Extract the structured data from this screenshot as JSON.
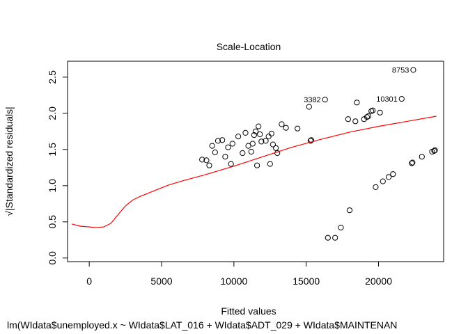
{
  "chart_data": {
    "type": "scatter",
    "title": "Scale-Location",
    "xlabel": "Fitted values",
    "ylabel": "√|Standardized residuals|",
    "subtitle": "lm(WIdata$unemployed.x ~ WIdata$LAT_016 + WIdata$ADT_029 + WIdata$MAINTENAN",
    "xlim": [
      -1500,
      24500
    ],
    "ylim": [
      -0.05,
      2.72
    ],
    "x_ticks": [
      0,
      5000,
      10000,
      15000,
      20000
    ],
    "y_ticks": [
      0.0,
      0.5,
      1.0,
      1.5,
      2.0,
      2.5
    ],
    "x_tick_labels": [
      "0",
      "5000",
      "10000",
      "15000",
      "20000"
    ],
    "y_tick_labels": [
      "0.0",
      "0.5",
      "1.0",
      "1.5",
      "2.0",
      "2.5"
    ],
    "grid": false,
    "legend": "none",
    "marker": "open-circle",
    "point_color": "#000000",
    "smooth_color": "#ff0000",
    "labeled_points": [
      {
        "label": "8753",
        "x": 22400,
        "y": 2.6
      },
      {
        "label": "3382",
        "x": 16300,
        "y": 2.19
      },
      {
        "label": "10301",
        "x": 21600,
        "y": 2.2
      }
    ],
    "points": [
      [
        16500,
        0.28
      ],
      [
        17000,
        0.28
      ],
      [
        17400,
        0.42
      ],
      [
        18000,
        0.66
      ],
      [
        19800,
        0.98
      ],
      [
        20300,
        1.06
      ],
      [
        20700,
        1.12
      ],
      [
        21000,
        1.16
      ],
      [
        22300,
        1.31
      ],
      [
        22350,
        1.32
      ],
      [
        23000,
        1.4
      ],
      [
        23700,
        1.47
      ],
      [
        23850,
        1.48
      ],
      [
        23900,
        1.49
      ],
      [
        15200,
        2.09
      ],
      [
        15300,
        1.62
      ],
      [
        15350,
        1.63
      ],
      [
        17900,
        1.92
      ],
      [
        18400,
        1.89
      ],
      [
        18500,
        2.15
      ],
      [
        19000,
        1.92
      ],
      [
        19200,
        1.95
      ],
      [
        19300,
        1.96
      ],
      [
        19500,
        2.03
      ],
      [
        19600,
        2.04
      ],
      [
        20100,
        2.01
      ],
      [
        14400,
        1.79
      ],
      [
        13300,
        1.85
      ],
      [
        13600,
        1.8
      ],
      [
        12700,
        1.57
      ],
      [
        12400,
        1.68
      ],
      [
        12200,
        1.62
      ],
      [
        11900,
        1.61
      ],
      [
        11700,
        1.82
      ],
      [
        11500,
        1.75
      ],
      [
        11400,
        1.7
      ],
      [
        11300,
        1.58
      ],
      [
        11000,
        1.55
      ],
      [
        10800,
        1.73
      ],
      [
        10300,
        1.68
      ],
      [
        9900,
        1.58
      ],
      [
        9600,
        1.53
      ],
      [
        9200,
        1.63
      ],
      [
        8900,
        1.62
      ],
      [
        12600,
        1.72
      ],
      [
        11800,
        1.71
      ],
      [
        13000,
        1.45
      ],
      [
        11200,
        1.47
      ],
      [
        12500,
        1.3
      ],
      [
        8500,
        1.55
      ],
      [
        8100,
        1.35
      ],
      [
        7800,
        1.36
      ],
      [
        8300,
        1.28
      ],
      [
        9400,
        1.4
      ],
      [
        12900,
        1.52
      ],
      [
        11600,
        1.28
      ],
      [
        8700,
        1.46
      ],
      [
        9800,
        1.3
      ],
      [
        10600,
        1.45
      ]
    ],
    "smooth": [
      [
        -1200,
        0.47
      ],
      [
        -600,
        0.44
      ],
      [
        0,
        0.43
      ],
      [
        500,
        0.42
      ],
      [
        1000,
        0.43
      ],
      [
        1500,
        0.48
      ],
      [
        2000,
        0.6
      ],
      [
        2500,
        0.72
      ],
      [
        3000,
        0.8
      ],
      [
        3500,
        0.85
      ],
      [
        4000,
        0.89
      ],
      [
        4500,
        0.93
      ],
      [
        5000,
        0.97
      ],
      [
        5500,
        1.01
      ],
      [
        6500,
        1.07
      ],
      [
        8000,
        1.15
      ],
      [
        10000,
        1.27
      ],
      [
        12000,
        1.4
      ],
      [
        14000,
        1.53
      ],
      [
        16000,
        1.64
      ],
      [
        18000,
        1.74
      ],
      [
        20000,
        1.82
      ],
      [
        22000,
        1.89
      ],
      [
        24000,
        1.96
      ]
    ]
  }
}
